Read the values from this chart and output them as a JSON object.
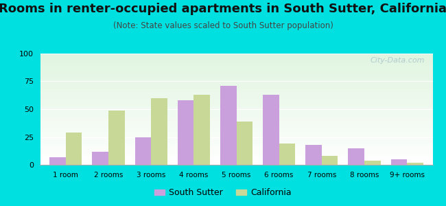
{
  "title": "Rooms in renter-occupied apartments in South Sutter, California",
  "subtitle": "(Note: State values scaled to South Sutter population)",
  "categories": [
    "1 room",
    "2 rooms",
    "3 rooms",
    "4 rooms",
    "5 rooms",
    "6 rooms",
    "7 rooms",
    "8 rooms",
    "9+ rooms"
  ],
  "south_sutter": [
    7,
    12,
    25,
    58,
    71,
    63,
    18,
    15,
    5
  ],
  "california": [
    29,
    49,
    60,
    63,
    39,
    19,
    8,
    4,
    2
  ],
  "south_sutter_color": "#c9a0dc",
  "california_color": "#c8d896",
  "ylim": [
    0,
    100
  ],
  "yticks": [
    0,
    25,
    50,
    75,
    100
  ],
  "bg_color": "#00e0e0",
  "watermark": "City-Data.com",
  "bar_width": 0.38,
  "title_fontsize": 13,
  "subtitle_fontsize": 8.5
}
